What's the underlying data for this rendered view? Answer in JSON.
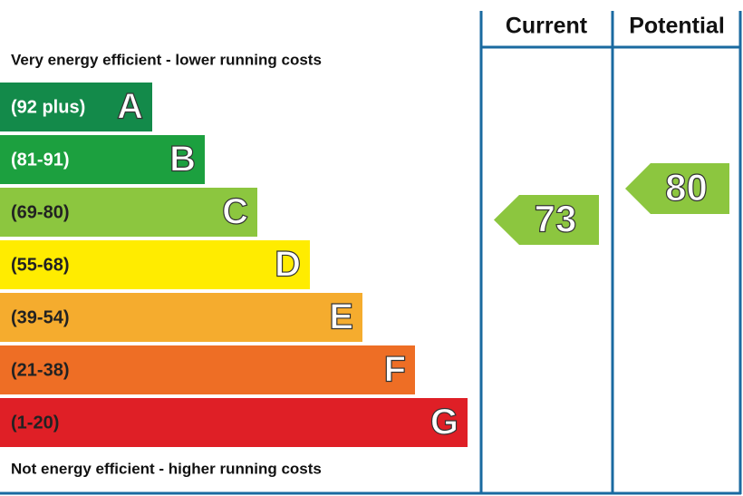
{
  "top_note": "Very energy efficient - lower running costs",
  "bottom_note": "Not energy efficient - higher running costs",
  "columns": [
    "Current",
    "Potential"
  ],
  "bands": [
    {
      "range": "(92 plus)",
      "letter": "A",
      "color": "#138a4a"
    },
    {
      "range": "(81-91)",
      "letter": "B",
      "color": "#1ca03f"
    },
    {
      "range": "(69-80)",
      "letter": "C",
      "color": "#8cc63f"
    },
    {
      "range": "(55-68)",
      "letter": "D",
      "color": "#ffec00"
    },
    {
      "range": "(39-54)",
      "letter": "E",
      "color": "#f5ac2e"
    },
    {
      "range": "(21-38)",
      "letter": "F",
      "color": "#ee6e25"
    },
    {
      "range": "(1-20)",
      "letter": "G",
      "color": "#df1f26"
    }
  ],
  "current": {
    "value": 73,
    "color": "#8cc63f"
  },
  "potential": {
    "value": 80,
    "color": "#8cc63f"
  }
}
